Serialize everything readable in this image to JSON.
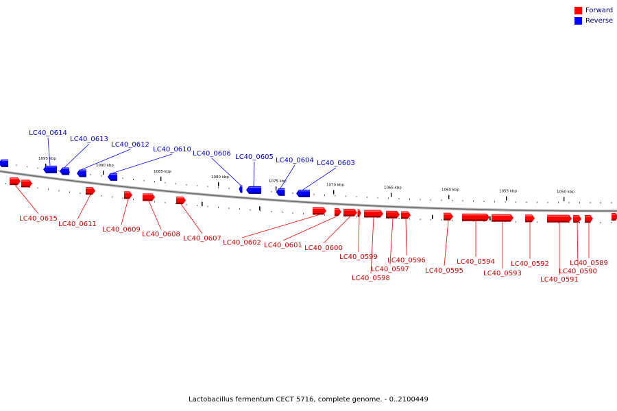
{
  "legend": {
    "forward": {
      "label": "Forward",
      "color": "#ff0000"
    },
    "reverse": {
      "label": "Reverse",
      "color": "#0000ff"
    }
  },
  "caption": "Lactobacillus fermentum CECT 5716, complete genome. - 0..2100449",
  "ticks": [
    "1095 kbp",
    "1090 kbp",
    "1085 kbp",
    "1080 kbp",
    "1075 kbp",
    "1070 kbp",
    "1065 kbp",
    "1060 kbp",
    "1055 kbp",
    "1050 kbp"
  ],
  "genes": [
    {
      "label": "LC40_0614",
      "strand": "reverse"
    },
    {
      "label": "LC40_0613",
      "strand": "reverse"
    },
    {
      "label": "LC40_0612",
      "strand": "reverse"
    },
    {
      "label": "LC40_0610",
      "strand": "reverse"
    },
    {
      "label": "LC40_0606",
      "strand": "reverse"
    },
    {
      "label": "LC40_0605",
      "strand": "reverse"
    },
    {
      "label": "LC40_0604",
      "strand": "reverse"
    },
    {
      "label": "LC40_0603",
      "strand": "reverse"
    },
    {
      "label": "LC40_0615",
      "strand": "forward"
    },
    {
      "label": "LC40_0611",
      "strand": "forward"
    },
    {
      "label": "LC40_0609",
      "strand": "forward"
    },
    {
      "label": "LC40_0608",
      "strand": "forward"
    },
    {
      "label": "LC40_0607",
      "strand": "forward"
    },
    {
      "label": "LC40_0602",
      "strand": "forward"
    },
    {
      "label": "LC40_0601",
      "strand": "forward"
    },
    {
      "label": "LC40_0600",
      "strand": "forward"
    },
    {
      "label": "LC40_0599",
      "strand": "forward"
    },
    {
      "label": "LC40_0598",
      "strand": "forward"
    },
    {
      "label": "LC40_0597",
      "strand": "forward"
    },
    {
      "label": "LC40_0596",
      "strand": "forward"
    },
    {
      "label": "LC40_0595",
      "strand": "forward"
    },
    {
      "label": "LC40_0594",
      "strand": "forward"
    },
    {
      "label": "LC40_0593",
      "strand": "forward"
    },
    {
      "label": "LC40_0592",
      "strand": "forward"
    },
    {
      "label": "LC40_0591",
      "strand": "forward"
    },
    {
      "label": "LC40_0590",
      "strand": "forward"
    },
    {
      "label": "LC40_0589",
      "strand": "forward"
    }
  ]
}
